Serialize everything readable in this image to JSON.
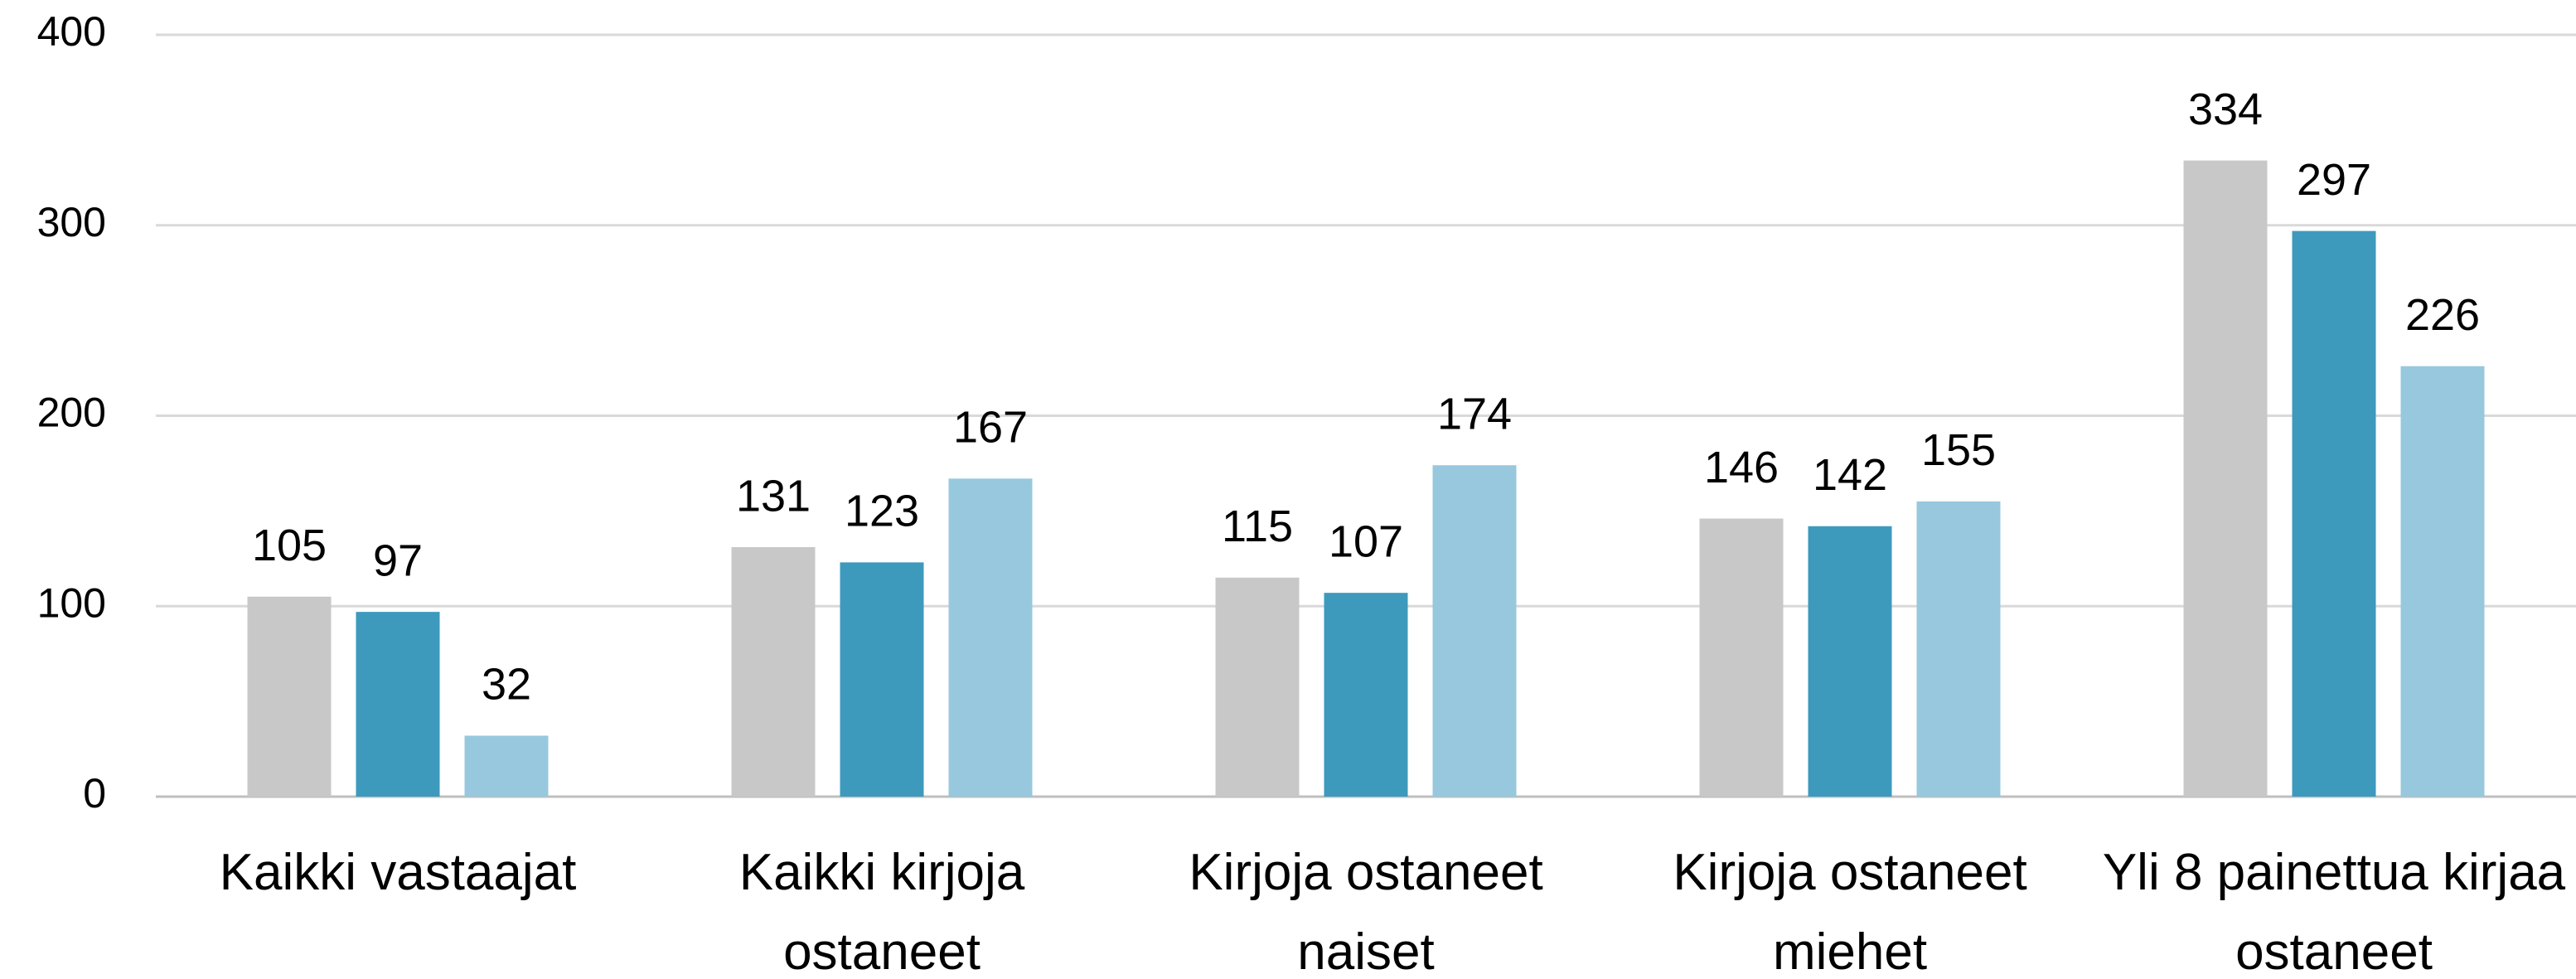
{
  "chart_data": {
    "type": "bar",
    "categories": [
      "Kaikki vastaajat",
      "Kaikki kirjoja ostaneet",
      "Kirjoja ostaneet naiset",
      "Kirjoja ostaneet miehet",
      "Yli 8 painettua kirjaa ostaneet"
    ],
    "series": [
      {
        "color": "#c8c8c8",
        "values": [
          105,
          131,
          115,
          146,
          334
        ]
      },
      {
        "color": "#3d9abd",
        "values": [
          97,
          123,
          107,
          142,
          297
        ]
      },
      {
        "color": "#97c8de",
        "values": [
          32,
          167,
          174,
          155,
          226
        ]
      }
    ],
    "ylim": [
      0,
      400
    ],
    "yticks": [
      0,
      100,
      200,
      300,
      400
    ],
    "grid": true
  }
}
